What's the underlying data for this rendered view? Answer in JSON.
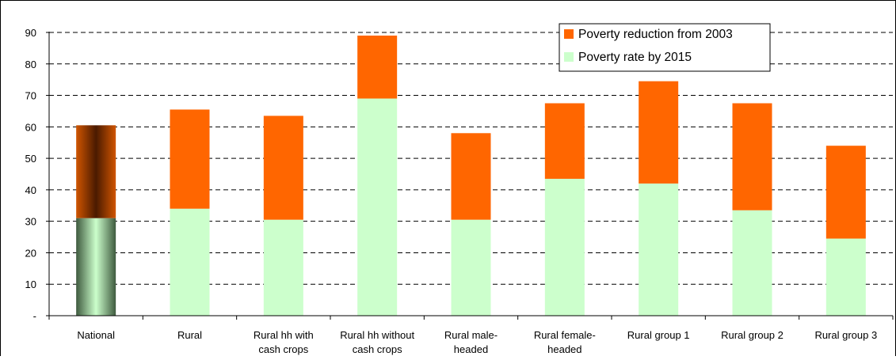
{
  "chart_data": {
    "type": "bar",
    "stacked": true,
    "categories": [
      [
        "National"
      ],
      [
        "Rural"
      ],
      [
        "Rural hh with",
        "cash crops"
      ],
      [
        "Rural hh without",
        "cash crops"
      ],
      [
        "Rural male-",
        "headed"
      ],
      [
        "Rural female-",
        "headed"
      ],
      [
        "Rural group 1"
      ],
      [
        "Rural group 2"
      ],
      [
        "Rural group 3"
      ]
    ],
    "series": [
      {
        "name": "Poverty rate by 2015",
        "color": "#ccffcc",
        "values": [
          31,
          34,
          30.5,
          69,
          30.5,
          43.5,
          42,
          33.5,
          24.5
        ]
      },
      {
        "name": "Poverty reduction from 2003",
        "color": "#ff6600",
        "values": [
          29.5,
          31.5,
          33,
          20,
          27.5,
          24,
          32.5,
          34,
          29.5
        ]
      }
    ],
    "y_ticks": [
      "-",
      "10",
      "20",
      "30",
      "40",
      "50",
      "60",
      "70",
      "80",
      "90"
    ],
    "ylim": [
      0,
      90
    ],
    "grid": "dashed horizontal",
    "legend_position": "top-right",
    "highlighted_category": "National",
    "highlight_colors": {
      "reduction": [
        "#4a1a00",
        "#d05500"
      ],
      "rate": [
        "#3e5a3e",
        "#ccffcc"
      ]
    }
  }
}
